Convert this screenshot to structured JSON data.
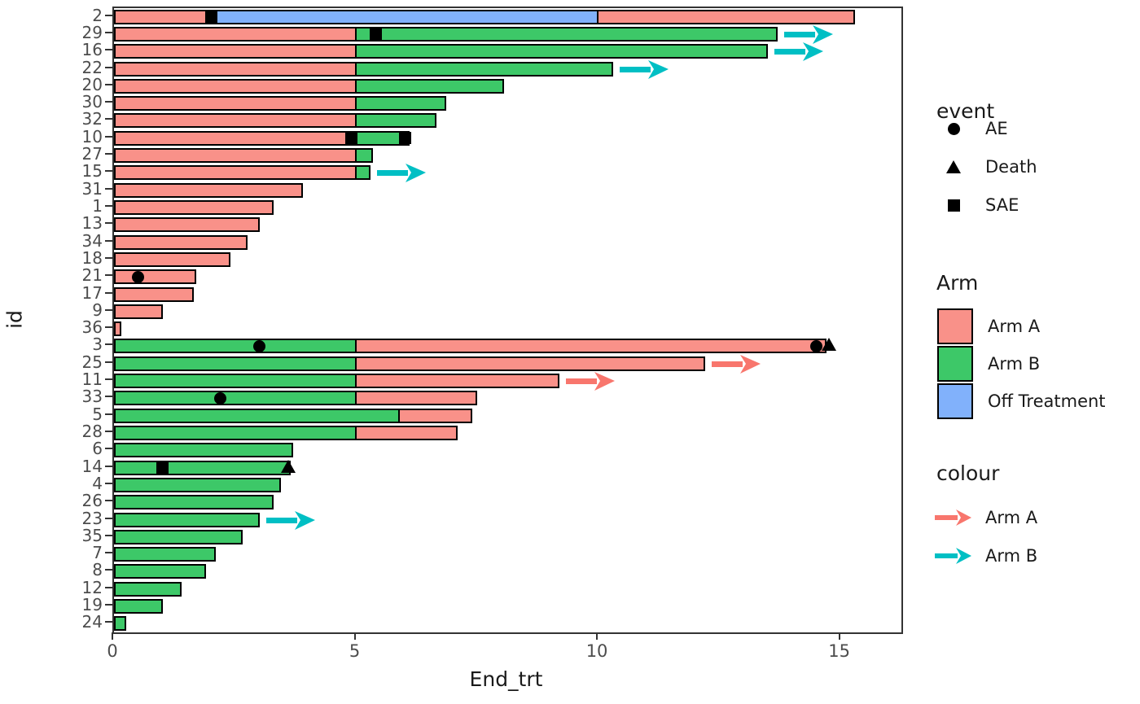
{
  "figure": {
    "xlabel": "End_trt",
    "ylabel": "id",
    "x_ticks": [
      0,
      5,
      10,
      15
    ],
    "x_max": 16.25
  },
  "colors": {
    "arm_a": "#F99189",
    "arm_b": "#3DC868",
    "off_treatment": "#81B1FB",
    "arrow_arm_a": "#F8766D",
    "arrow_arm_b": "#00BFC4",
    "bar_border": "#000000",
    "axis_text": "#4d4d4d",
    "panel_border": "#333333"
  },
  "legend": {
    "event": {
      "title": "event",
      "items": [
        {
          "label": "AE",
          "marker": "circle"
        },
        {
          "label": "Death",
          "marker": "triangle"
        },
        {
          "label": "SAE",
          "marker": "square"
        }
      ]
    },
    "arm": {
      "title": "Arm",
      "items": [
        {
          "label": "Arm A",
          "color_key": "arm_a"
        },
        {
          "label": "Arm B",
          "color_key": "arm_b"
        },
        {
          "label": "Off Treatment",
          "color_key": "off_treatment"
        }
      ]
    },
    "colour": {
      "title": "colour",
      "items": [
        {
          "label": "Arm A",
          "color_key": "arrow_arm_a"
        },
        {
          "label": "Arm B",
          "color_key": "arrow_arm_b"
        }
      ]
    }
  },
  "chart_data": {
    "type": "bar",
    "orientation": "horizontal",
    "title": "",
    "xlabel": "End_trt",
    "ylabel": "id",
    "xlim": [
      0,
      16.25
    ],
    "x_ticks": [
      0,
      5,
      10,
      15
    ],
    "rows": [
      {
        "id": "2",
        "segments": [
          {
            "arm": "arm_a",
            "start": 0,
            "end": 2
          },
          {
            "arm": "off_treatment",
            "start": 2,
            "end": 10
          },
          {
            "arm": "arm_a",
            "start": 10,
            "end": 15.3
          }
        ],
        "events": [
          {
            "type": "square",
            "x": 2
          }
        ],
        "arrow": null
      },
      {
        "id": "29",
        "segments": [
          {
            "arm": "arm_a",
            "start": 0,
            "end": 5
          },
          {
            "arm": "arm_b",
            "start": 5,
            "end": 13.7
          }
        ],
        "events": [
          {
            "type": "square",
            "x": 5.4
          }
        ],
        "arrow": "arm_b"
      },
      {
        "id": "16",
        "segments": [
          {
            "arm": "arm_a",
            "start": 0,
            "end": 5
          },
          {
            "arm": "arm_b",
            "start": 5,
            "end": 13.5
          }
        ],
        "events": [],
        "arrow": "arm_b"
      },
      {
        "id": "22",
        "segments": [
          {
            "arm": "arm_a",
            "start": 0,
            "end": 5
          },
          {
            "arm": "arm_b",
            "start": 5,
            "end": 10.3
          }
        ],
        "events": [],
        "arrow": "arm_b"
      },
      {
        "id": "20",
        "segments": [
          {
            "arm": "arm_a",
            "start": 0,
            "end": 5
          },
          {
            "arm": "arm_b",
            "start": 5,
            "end": 8.05
          }
        ],
        "events": [],
        "arrow": null
      },
      {
        "id": "30",
        "segments": [
          {
            "arm": "arm_a",
            "start": 0,
            "end": 5
          },
          {
            "arm": "arm_b",
            "start": 5,
            "end": 6.85
          }
        ],
        "events": [],
        "arrow": null
      },
      {
        "id": "32",
        "segments": [
          {
            "arm": "arm_a",
            "start": 0,
            "end": 5
          },
          {
            "arm": "arm_b",
            "start": 5,
            "end": 6.65
          }
        ],
        "events": [],
        "arrow": null
      },
      {
        "id": "10",
        "segments": [
          {
            "arm": "arm_a",
            "start": 0,
            "end": 5
          },
          {
            "arm": "arm_b",
            "start": 5,
            "end": 6.1
          }
        ],
        "events": [
          {
            "type": "square",
            "x": 4.9
          },
          {
            "type": "square",
            "x": 6.0
          }
        ],
        "arrow": null
      },
      {
        "id": "27",
        "segments": [
          {
            "arm": "arm_a",
            "start": 0,
            "end": 5
          },
          {
            "arm": "arm_b",
            "start": 5,
            "end": 5.35
          }
        ],
        "events": [],
        "arrow": null
      },
      {
        "id": "15",
        "segments": [
          {
            "arm": "arm_a",
            "start": 0,
            "end": 5
          },
          {
            "arm": "arm_b",
            "start": 5,
            "end": 5.3
          }
        ],
        "events": [],
        "arrow": "arm_b"
      },
      {
        "id": "31",
        "segments": [
          {
            "arm": "arm_a",
            "start": 0,
            "end": 3.9
          }
        ],
        "events": [],
        "arrow": null
      },
      {
        "id": "1",
        "segments": [
          {
            "arm": "arm_a",
            "start": 0,
            "end": 3.3
          }
        ],
        "events": [],
        "arrow": null
      },
      {
        "id": "13",
        "segments": [
          {
            "arm": "arm_a",
            "start": 0,
            "end": 3.0
          }
        ],
        "events": [],
        "arrow": null
      },
      {
        "id": "34",
        "segments": [
          {
            "arm": "arm_a",
            "start": 0,
            "end": 2.75
          }
        ],
        "events": [],
        "arrow": null
      },
      {
        "id": "18",
        "segments": [
          {
            "arm": "arm_a",
            "start": 0,
            "end": 2.4
          }
        ],
        "events": [],
        "arrow": null
      },
      {
        "id": "21",
        "segments": [
          {
            "arm": "arm_a",
            "start": 0,
            "end": 1.7
          }
        ],
        "events": [
          {
            "type": "circle",
            "x": 0.5
          }
        ],
        "arrow": null
      },
      {
        "id": "17",
        "segments": [
          {
            "arm": "arm_a",
            "start": 0,
            "end": 1.65
          }
        ],
        "events": [],
        "arrow": null
      },
      {
        "id": "9",
        "segments": [
          {
            "arm": "arm_a",
            "start": 0,
            "end": 1.0
          }
        ],
        "events": [],
        "arrow": null
      },
      {
        "id": "36",
        "segments": [
          {
            "arm": "arm_a",
            "start": 0,
            "end": 0.15
          }
        ],
        "events": [],
        "arrow": null
      },
      {
        "id": "3",
        "segments": [
          {
            "arm": "arm_b",
            "start": 0,
            "end": 5
          },
          {
            "arm": "arm_a",
            "start": 5,
            "end": 14.7
          }
        ],
        "events": [
          {
            "type": "circle",
            "x": 3.0
          },
          {
            "type": "circle",
            "x": 14.5
          },
          {
            "type": "triangle",
            "x": 14.75
          }
        ],
        "arrow": null
      },
      {
        "id": "25",
        "segments": [
          {
            "arm": "arm_b",
            "start": 0,
            "end": 5
          },
          {
            "arm": "arm_a",
            "start": 5,
            "end": 12.2
          }
        ],
        "events": [],
        "arrow": "arm_a"
      },
      {
        "id": "11",
        "segments": [
          {
            "arm": "arm_b",
            "start": 0,
            "end": 5
          },
          {
            "arm": "arm_a",
            "start": 5,
            "end": 9.2
          }
        ],
        "events": [],
        "arrow": "arm_a"
      },
      {
        "id": "33",
        "segments": [
          {
            "arm": "arm_b",
            "start": 0,
            "end": 5
          },
          {
            "arm": "arm_a",
            "start": 5,
            "end": 7.5
          }
        ],
        "events": [
          {
            "type": "circle",
            "x": 2.2
          }
        ],
        "arrow": null
      },
      {
        "id": "5",
        "segments": [
          {
            "arm": "arm_b",
            "start": 0,
            "end": 5.9
          },
          {
            "arm": "arm_a",
            "start": 5.9,
            "end": 7.4
          }
        ],
        "events": [],
        "arrow": null
      },
      {
        "id": "28",
        "segments": [
          {
            "arm": "arm_b",
            "start": 0,
            "end": 5
          },
          {
            "arm": "arm_a",
            "start": 5,
            "end": 7.1
          }
        ],
        "events": [],
        "arrow": null
      },
      {
        "id": "6",
        "segments": [
          {
            "arm": "arm_b",
            "start": 0,
            "end": 3.7
          }
        ],
        "events": [],
        "arrow": null
      },
      {
        "id": "14",
        "segments": [
          {
            "arm": "arm_b",
            "start": 0,
            "end": 3.65
          }
        ],
        "events": [
          {
            "type": "square",
            "x": 1.0
          },
          {
            "type": "triangle",
            "x": 3.6
          }
        ],
        "arrow": null
      },
      {
        "id": "4",
        "segments": [
          {
            "arm": "arm_b",
            "start": 0,
            "end": 3.45
          }
        ],
        "events": [],
        "arrow": null
      },
      {
        "id": "26",
        "segments": [
          {
            "arm": "arm_b",
            "start": 0,
            "end": 3.3
          }
        ],
        "events": [],
        "arrow": null
      },
      {
        "id": "23",
        "segments": [
          {
            "arm": "arm_b",
            "start": 0,
            "end": 3.0
          }
        ],
        "events": [],
        "arrow": "arm_b"
      },
      {
        "id": "35",
        "segments": [
          {
            "arm": "arm_b",
            "start": 0,
            "end": 2.65
          }
        ],
        "events": [],
        "arrow": null
      },
      {
        "id": "7",
        "segments": [
          {
            "arm": "arm_b",
            "start": 0,
            "end": 2.1
          }
        ],
        "events": [],
        "arrow": null
      },
      {
        "id": "8",
        "segments": [
          {
            "arm": "arm_b",
            "start": 0,
            "end": 1.9
          }
        ],
        "events": [],
        "arrow": null
      },
      {
        "id": "12",
        "segments": [
          {
            "arm": "arm_b",
            "start": 0,
            "end": 1.4
          }
        ],
        "events": [],
        "arrow": null
      },
      {
        "id": "19",
        "segments": [
          {
            "arm": "arm_b",
            "start": 0,
            "end": 1.0
          }
        ],
        "events": [],
        "arrow": null
      },
      {
        "id": "24",
        "segments": [
          {
            "arm": "arm_b",
            "start": 0,
            "end": 0.25
          }
        ],
        "events": [],
        "arrow": null
      }
    ]
  }
}
